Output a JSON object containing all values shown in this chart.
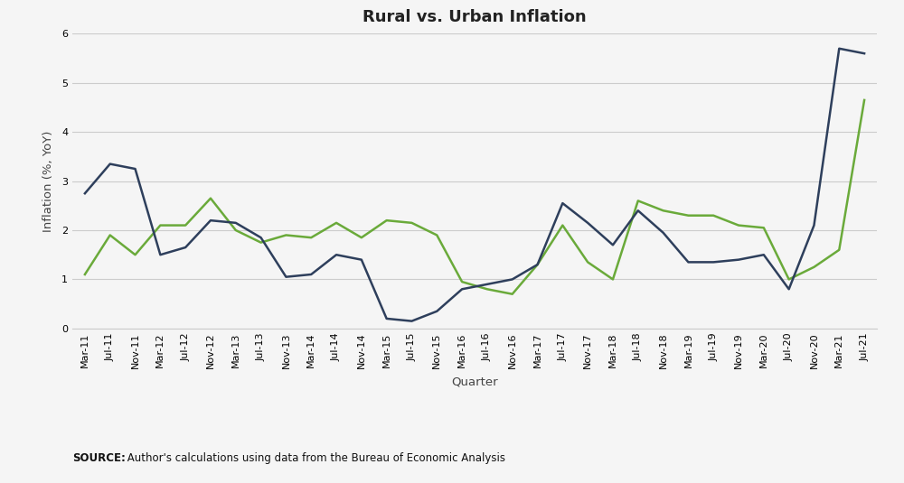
{
  "title": "Rural vs. Urban Inflation",
  "xlabel": "Quarter",
  "ylabel": "Inflation (%, YoY)",
  "xlabels": [
    "Mar-11",
    "Jul-11",
    "Nov-11",
    "Mar-12",
    "Jul-12",
    "Nov-12",
    "Mar-13",
    "Jul-13",
    "Nov-13",
    "Mar-14",
    "Jul-14",
    "Nov-14",
    "Mar-15",
    "Jul-15",
    "Nov-15",
    "Mar-16",
    "Jul-16",
    "Nov-16",
    "Mar-17",
    "Jul-17",
    "Nov-17",
    "Mar-18",
    "Jul-18",
    "Nov-18",
    "Mar-19",
    "Jul-19",
    "Nov-19",
    "Mar-20",
    "Jul-20",
    "Nov-20",
    "Mar-21",
    "Jul-21"
  ],
  "urban": [
    1.1,
    1.9,
    1.5,
    2.1,
    2.1,
    2.65,
    2.0,
    1.75,
    1.9,
    1.85,
    2.15,
    1.85,
    2.2,
    2.15,
    1.9,
    0.95,
    0.8,
    0.7,
    1.3,
    2.1,
    1.35,
    1.0,
    2.6,
    2.4,
    2.3,
    2.3,
    2.1,
    2.05,
    1.0,
    1.25,
    1.6,
    4.65
  ],
  "rural": [
    2.75,
    3.35,
    3.25,
    1.5,
    1.65,
    2.2,
    2.15,
    1.85,
    1.05,
    1.1,
    1.5,
    1.4,
    0.2,
    0.15,
    0.35,
    0.8,
    0.9,
    1.0,
    1.3,
    2.55,
    2.15,
    1.7,
    2.4,
    1.95,
    1.35,
    1.35,
    1.4,
    1.5,
    0.8,
    2.1,
    5.7,
    5.6
  ],
  "urban_color": "#6aaa3a",
  "rural_color": "#2e3f5c",
  "ylim": [
    0,
    6
  ],
  "yticks": [
    0,
    1,
    2,
    3,
    4,
    5,
    6
  ],
  "source_bold": "SOURCE:",
  "source_rest": " Author's calculations using data from the Bureau of Economic Analysis",
  "background_color": "#f5f5f5",
  "grid_color": "#cccccc",
  "title_fontsize": 13,
  "label_fontsize": 9.5,
  "tick_fontsize": 8,
  "legend_fontsize": 9.5,
  "source_fontsize": 8.5
}
